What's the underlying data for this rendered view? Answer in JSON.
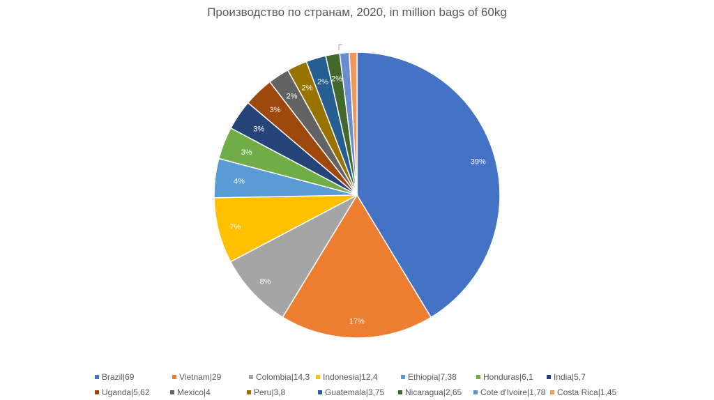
{
  "chart_data": {
    "type": "pie",
    "title": "Производство по странам, 2020, in million bags of 60kg",
    "slices": [
      {
        "label": "Brazil|69",
        "value": 69,
        "pct_label": "39%",
        "color": "#4472C4"
      },
      {
        "label": "Vietnam|29",
        "value": 29,
        "pct_label": "17%",
        "color": "#ED7D31"
      },
      {
        "label": "Colombia|14,3",
        "value": 14.3,
        "pct_label": "8%",
        "color": "#A5A5A5"
      },
      {
        "label": "Indonesia|12,4",
        "value": 12.4,
        "pct_label": "7%",
        "color": "#FFC000"
      },
      {
        "label": "Ethiopia|7,38",
        "value": 7.38,
        "pct_label": "4%",
        "color": "#5B9BD5"
      },
      {
        "label": "Honduras|6,1",
        "value": 6.1,
        "pct_label": "3%",
        "color": "#70AD47"
      },
      {
        "label": "India|5,7",
        "value": 5.7,
        "pct_label": "3%",
        "color": "#264478"
      },
      {
        "label": "Uganda|5,62",
        "value": 5.62,
        "pct_label": "3%",
        "color": "#9E480E"
      },
      {
        "label": "Mexico|4",
        "value": 4,
        "pct_label": "2%",
        "color": "#636363"
      },
      {
        "label": "Peru|3,8",
        "value": 3.8,
        "pct_label": "2%",
        "color": "#997300"
      },
      {
        "label": "Guatemala|3,75",
        "value": 3.75,
        "pct_label": "2%",
        "color": "#255E91"
      },
      {
        "label": "Nicaragua|2,65",
        "value": 2.65,
        "pct_label": "2%",
        "color": "#43682B"
      },
      {
        "label": "Cote d'Ivoire|1,78",
        "value": 1.78,
        "pct_label": "",
        "color": "#698ED0"
      },
      {
        "label": "Costa Rica|1,45",
        "value": 1.45,
        "pct_label": "",
        "color": "#F1975A"
      }
    ],
    "legend_position": "bottom"
  }
}
